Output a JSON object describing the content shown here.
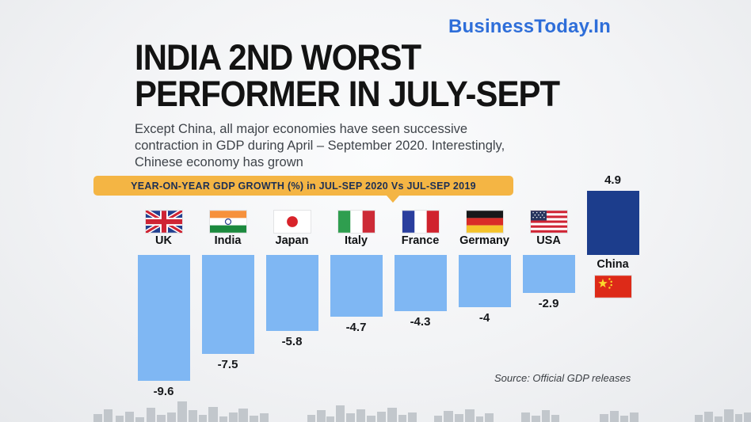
{
  "page": {
    "brand": "BusinessToday.In",
    "title_lines": [
      "INDIA 2ND WORST",
      "PERFORMER IN JULY-SEPT"
    ],
    "subtitle_lines": [
      "Except China, all major economies have seen successive",
      "contraction in GDP during April – September 2020. Interestingly,",
      "Chinese economy has grown"
    ],
    "source": "Source: Official GDP releases"
  },
  "colors": {
    "brand_blue": "#2e6ed9",
    "banner_orange": "#f4b544",
    "bar_negative": "#7fb7f3",
    "bar_positive": "#1c3d8c"
  },
  "chart_data": {
    "type": "bar",
    "title": "YEAR-ON-YEAR GDP GROWTH (%) in JUL-SEP 2020 Vs JUL-SEP 2019",
    "categories": [
      "UK",
      "India",
      "Japan",
      "Italy",
      "France",
      "Germany",
      "USA",
      "China"
    ],
    "values": [
      -9.6,
      -7.5,
      -5.8,
      -4.7,
      -4.3,
      -4,
      -2.9,
      4.9
    ],
    "value_labels": [
      "-9.6",
      "-7.5",
      "-5.8",
      "-4.7",
      "-4.3",
      "-4",
      "-2.9",
      "4.9"
    ],
    "ylim": [
      -10,
      5
    ],
    "grid": false,
    "legend": false,
    "flag_icons": [
      "uk-flag-icon",
      "india-flag-icon",
      "japan-flag-icon",
      "italy-flag-icon",
      "france-flag-icon",
      "germany-flag-icon",
      "usa-flag-icon",
      "china-flag-icon"
    ]
  }
}
